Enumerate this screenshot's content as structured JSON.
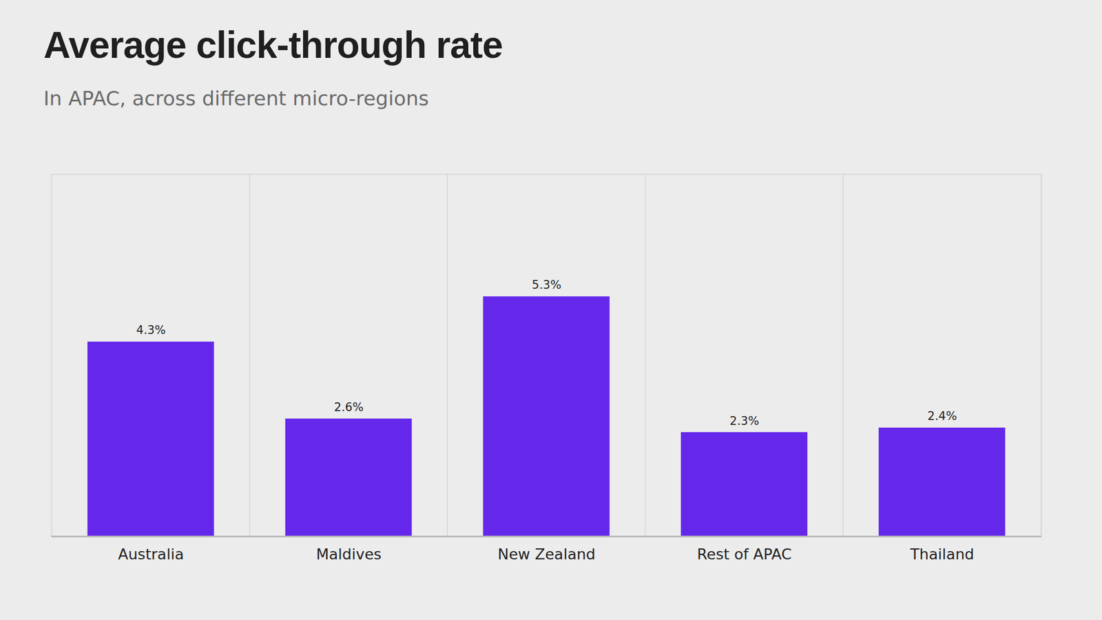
{
  "chart_data": {
    "type": "bar",
    "title": "Average click-through rate",
    "subtitle": "In APAC, across different micro-regions",
    "categories": [
      "Australia",
      "Maldives",
      "New Zealand",
      "Rest of APAC",
      "Thailand"
    ],
    "values": [
      4.3,
      2.6,
      5.3,
      2.3,
      2.4
    ],
    "value_labels": [
      "4.3%",
      "2.6%",
      "5.3%",
      "2.3%",
      "2.4%"
    ],
    "color": "#6528eb",
    "ylim": [
      0,
      8
    ],
    "grid": true,
    "data_labels": true,
    "tick_labels": "x"
  }
}
